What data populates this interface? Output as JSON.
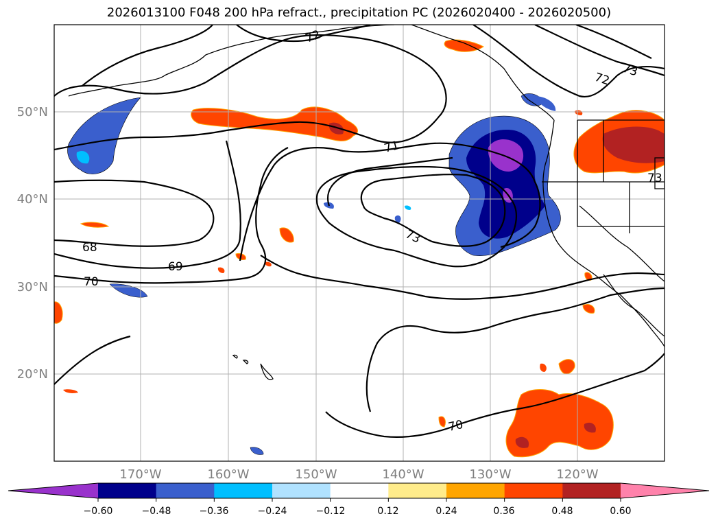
{
  "title": "2026013100 F048 200 hPa refract., precipitation PC (2026020400 - 2026020500)",
  "lat_labels": [
    "50°N",
    "40°N",
    "30°N",
    "20°N"
  ],
  "lon_labels": [
    "170°W",
    "160°W",
    "150°W",
    "140°W",
    "130°W",
    "120°W"
  ],
  "contour_labels": [
    "72",
    "73",
    "72",
    "71",
    "73",
    "73",
    "68",
    "69",
    "70",
    "70"
  ],
  "colorbar": {
    "ticks": [
      "−0.60",
      "−0.48",
      "−0.36",
      "−0.24",
      "−0.12",
      "0.12",
      "0.24",
      "0.36",
      "0.48",
      "0.60"
    ],
    "colors": [
      "#9932cc",
      "#00008b",
      "#3a5fcd",
      "#00bfff",
      "#b0e2ff",
      "#ffffff",
      "#ffec8b",
      "#ffa500",
      "#ff4500",
      "#b22222",
      "#ff82ab"
    ]
  },
  "colors": {
    "neg_strong": "#9932cc",
    "neg_dark": "#00008b",
    "neg_mid": "#3a5fcd",
    "neg_light": "#00bfff",
    "neg_faint": "#b0e2ff",
    "pos_faint": "#ffec8b",
    "pos_light": "#ffa500",
    "pos_mid": "#ff4500",
    "pos_dark": "#b22222",
    "pos_strong": "#ff82ab"
  }
}
